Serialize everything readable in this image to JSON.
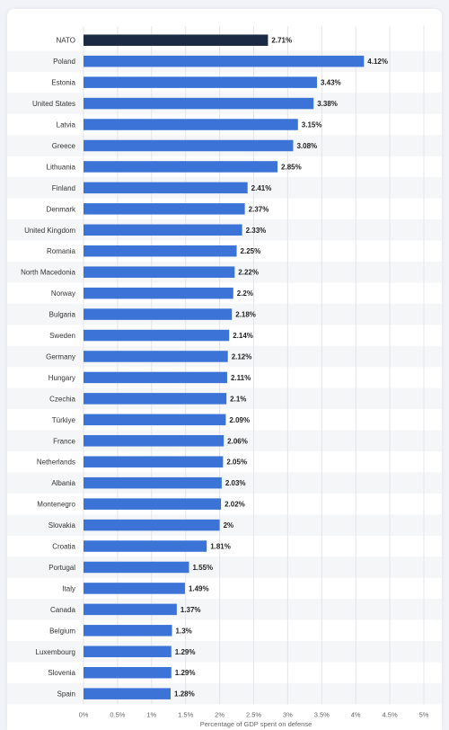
{
  "chart_data": {
    "type": "bar",
    "orientation": "horizontal",
    "xlabel": "Percentage of GDP spent on defense",
    "xlim": [
      0,
      5
    ],
    "x_ticks": [
      "0%",
      "0.5%",
      "1%",
      "1.5%",
      "2%",
      "2.5%",
      "3%",
      "3.5%",
      "4%",
      "4.5%",
      "5%"
    ],
    "grid": true,
    "colors": {
      "highlight": "#1c2a44",
      "bar": "#3b73d6"
    },
    "categories": [
      "NATO",
      "Poland",
      "Estonia",
      "United States",
      "Latvia",
      "Greece",
      "Lithuania",
      "Finland",
      "Denmark",
      "United Kingdom",
      "Romania",
      "North Macedonia",
      "Norway",
      "Bulgaria",
      "Sweden",
      "Germany",
      "Hungary",
      "Czechia",
      "Türkiye",
      "France",
      "Netherlands",
      "Albania",
      "Montenegro",
      "Slovakia",
      "Croatia",
      "Portugal",
      "Italy",
      "Canada",
      "Belgium",
      "Luxembourg",
      "Slovenia",
      "Spain"
    ],
    "values": [
      2.71,
      4.12,
      3.43,
      3.38,
      3.15,
      3.08,
      2.85,
      2.41,
      2.37,
      2.33,
      2.25,
      2.22,
      2.2,
      2.18,
      2.14,
      2.12,
      2.11,
      2.1,
      2.09,
      2.06,
      2.05,
      2.03,
      2.02,
      2,
      1.81,
      1.55,
      1.49,
      1.37,
      1.3,
      1.29,
      1.29,
      1.28
    ],
    "value_labels": [
      "2.71%",
      "4.12%",
      "3.43%",
      "3.38%",
      "3.15%",
      "3.08%",
      "2.85%",
      "2.41%",
      "2.37%",
      "2.33%",
      "2.25%",
      "2.22%",
      "2.2%",
      "2.18%",
      "2.14%",
      "2.12%",
      "2.11%",
      "2.1%",
      "2.09%",
      "2.06%",
      "2.05%",
      "2.03%",
      "2.02%",
      "2%",
      "1.81%",
      "1.55%",
      "1.49%",
      "1.37%",
      "1.3%",
      "1.29%",
      "1.29%",
      "1.28%"
    ],
    "highlighted_category": "NATO"
  }
}
